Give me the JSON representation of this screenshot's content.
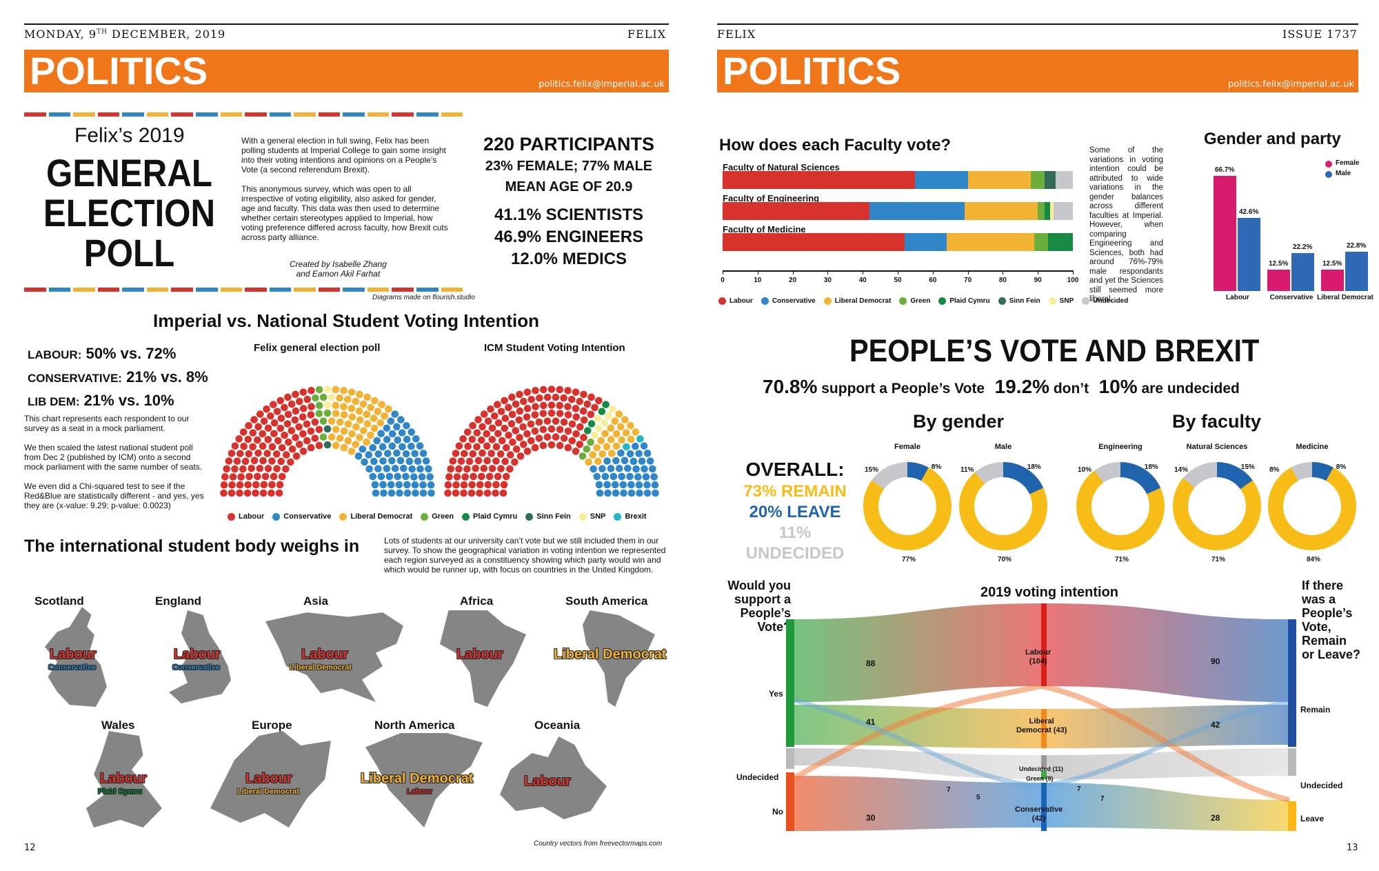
{
  "left_page": {
    "running_head_left": "MONDAY, 9",
    "running_head_sup": "TH",
    "running_head_rest": " DECEMBER, 2019",
    "running_head_right": "FELIX",
    "banner_title": "POLITICS",
    "banner_email": "politics.felix@imperial.ac.uk",
    "kicker": "Felix’s 2019",
    "headline": [
      "GENERAL",
      "ELECTION",
      "POLL"
    ],
    "intro_p1": "With a general election in full swing, Felix has been polling students at Imperial College to gain some insight into their voting intentions and opinions on a People’s Vote (a second referendum Brexit).",
    "intro_p2": "This anonymous survey, which was open to all irrespective of voting eligibility, also asked for gender, age and faculty. This data was then used to determine whether certain stereotypes applied to Imperial, how voting preference differed across faculty, how Brexit cuts across party alliance.",
    "byline_1": "Created by Isabelle Zhang",
    "byline_2": "and Eamon Akil Farhat",
    "stats": [
      "220 PARTICIPANTS",
      "23% FEMALE; 77% MALE",
      "MEAN AGE OF 20.9",
      "41.1% SCIENTISTS",
      "46.9% ENGINEERS",
      "12.0% MEDICS"
    ],
    "flourish_note": "Diagrams made on flourish.studio",
    "section1_title": "Imperial vs. National Student Voting Intention",
    "compare": [
      {
        "party": "LABOUR:",
        "vals": "50% vs. 72%"
      },
      {
        "party": "CONSERVATIVE:",
        "vals": "21% vs. 8%"
      },
      {
        "party": "LIB DEM:",
        "vals": "21% vs. 10%"
      }
    ],
    "expl_p1": "This chart represents each respondent to our survey as a seat in a mock parliament.",
    "expl_p2": "We then scaled the latest national student poll from Dec 2 (published by ICM) onto a second mock parliament with the same number of seats.",
    "expl_p3": "We even did a Chi-squared test to see if the Red&Blue are statistically different - and yes, yes they are (x-value: 9.29; p-value: 0.0023)",
    "parl_left_title": "Felix general election poll",
    "parl_right_title": "ICM Student Voting Intention",
    "parl_legend": [
      {
        "name": "Labour",
        "color": "#d7322c"
      },
      {
        "name": "Conservative",
        "color": "#2f86c8"
      },
      {
        "name": "Liberal Democrat",
        "color": "#f2b233"
      },
      {
        "name": "Green",
        "color": "#6cae3b"
      },
      {
        "name": "Plaid Cymru",
        "color": "#168a45"
      },
      {
        "name": "Sinn Fein",
        "color": "#336b5a"
      },
      {
        "name": "SNP",
        "color": "#f6ee9a"
      },
      {
        "name": "Brexit",
        "color": "#23b4c8"
      }
    ],
    "section2_title": "The international student body weighs in",
    "intl_text": "Lots of students at our university can’t vote but we still included them in our survey.  To show the geographical variation in voting intention we represented each region surveyed as a constituency showing which party would win and which would be runner up, with focus on countries in the United Kingdom.",
    "regions": [
      {
        "name": "Scotland",
        "winner": "Labour",
        "runner": "Conservative"
      },
      {
        "name": "England",
        "winner": "Labour",
        "runner": "Conservative"
      },
      {
        "name": "Asia",
        "winner": "Labour",
        "runner": "Liberal Democrat"
      },
      {
        "name": "Africa",
        "winner": "Labour",
        "runner": ""
      },
      {
        "name": "South America",
        "winner": "Liberal Democrat",
        "runner": ""
      },
      {
        "name": "Wales",
        "winner": "Labour",
        "runner": "Plaid Cymru"
      },
      {
        "name": "Europe",
        "winner": "Labour",
        "runner": "Liberal Democrat"
      },
      {
        "name": "North America",
        "winner": "Liberal Democrat",
        "runner": "Labour"
      },
      {
        "name": "Oceania",
        "winner": "Labour",
        "runner": ""
      }
    ],
    "map_credit": "Country vectors from freevectormaps.com",
    "page_number": "12"
  },
  "right_page": {
    "running_head_left": "FELIX",
    "running_head_right": "ISSUE 1737",
    "banner_title": "POLITICS",
    "banner_email": "politics.felix@imperial.ac.uk",
    "faculty_title": "How does each Faculty vote?",
    "faculty_text": "Some of the variations in voting intention could be attributed to wide variations in the gender balances across different faculties at Imperial. However, when comparing Engineering and Sciences, both had around 76%-79% male respondants and yet the Sciences still seemed more liberal.",
    "faculty_legend": [
      "Labour",
      "Conservative",
      "Liberal Democrat",
      "Green",
      "Plaid Cymru",
      "Sinn Fein",
      "SNP",
      "Undecided"
    ],
    "gender_title": "Gender and party",
    "gender_legend": [
      "Female",
      "Male"
    ],
    "pv_title": "PEOPLE’S VOTE AND BREXIT",
    "pv_sub": [
      {
        "big": "70.8%",
        "small": " support a People’s Vote"
      },
      {
        "big": "19.2%",
        "small": " don’t"
      },
      {
        "big": "10%",
        "small": " are undecided"
      }
    ],
    "by_gender": "By gender",
    "by_faculty": "By faculty",
    "overall_label": "OVERALL:",
    "overall_remain": "73% REMAIN",
    "overall_leave": "20% LEAVE",
    "overall_undecided": "11% UNDECIDED",
    "sankey_left_q": [
      "Would you",
      "support a",
      "People’s",
      "Vote?"
    ],
    "sankey_title": "2019 voting intention",
    "sankey_right_q": [
      "If there",
      "was a",
      "People’s",
      "Vote,",
      "Remain",
      "or Leave?"
    ],
    "sankey_left_nodes": [
      "Yes",
      "Undecided",
      "No"
    ],
    "sankey_right_nodes": [
      "Remain",
      "Undecided",
      "Leave"
    ],
    "sankey_mid_nodes": [
      "Labour",
      "(104)",
      "Liberal",
      "Democrat (43)",
      "Undecided (11)",
      "Green (9)",
      "Conservative",
      "(42)"
    ],
    "sankey_numbers": [
      "88",
      "41",
      "30",
      "7",
      "5",
      "90",
      "42",
      "28",
      "7",
      "7"
    ],
    "page_number": "13"
  },
  "chart_data": [
    {
      "type": "bar",
      "title": "How does each Faculty vote?",
      "orientation": "horizontal-stacked",
      "categories": [
        "Faculty of Natural Sciences",
        "Faculty of Engineering",
        "Faculty of Medicine"
      ],
      "xlim": [
        0,
        100
      ],
      "xticks": [
        "0",
        "10",
        "20",
        "30",
        "40",
        "50",
        "60",
        "70",
        "80",
        "90",
        "100"
      ],
      "series": [
        {
          "name": "Labour",
          "color": "#d7322c",
          "values": [
            55,
            42,
            52
          ]
        },
        {
          "name": "Conservative",
          "color": "#2f86c8",
          "values": [
            15,
            27,
            12
          ]
        },
        {
          "name": "Liberal Democrat",
          "color": "#f2b233",
          "values": [
            18,
            21,
            25
          ]
        },
        {
          "name": "Green",
          "color": "#6cae3b",
          "values": [
            4,
            2,
            4
          ]
        },
        {
          "name": "Plaid Cymru",
          "color": "#168a45",
          "values": [
            0,
            1.5,
            7
          ]
        },
        {
          "name": "Sinn Fein",
          "color": "#336b5a",
          "values": [
            3,
            0,
            0
          ]
        },
        {
          "name": "SNP",
          "color": "#f6ee9a",
          "values": [
            0,
            1,
            0
          ]
        },
        {
          "name": "Undecided",
          "color": "#c6c7cb",
          "values": [
            5,
            5.5,
            0
          ]
        }
      ]
    },
    {
      "type": "bar",
      "title": "Gender and party",
      "categories": [
        "Labour",
        "Conservative",
        "Liberal Democrat"
      ],
      "ylim": [
        0,
        70
      ],
      "series": [
        {
          "name": "Female",
          "color": "#d81b6d",
          "values": [
            66.7,
            12.5,
            12.5
          ],
          "labels": [
            "66.7%",
            "12.5%",
            "12.5%"
          ]
        },
        {
          "name": "Male",
          "color": "#2f69b5",
          "values": [
            42.6,
            22.2,
            22.8
          ],
          "labels": [
            "42.6%",
            "22.2%",
            "22.8%"
          ]
        }
      ]
    },
    {
      "type": "pie",
      "title": "People's Vote by gender and faculty",
      "donuts": [
        {
          "label": "Female",
          "remain": 77,
          "leave": 8,
          "undecided": 15
        },
        {
          "label": "Male",
          "remain": 70,
          "leave": 18,
          "undecided": 11
        },
        {
          "label": "Engineering",
          "remain": 71,
          "leave": 18,
          "undecided": 10
        },
        {
          "label": "Natural Sciences",
          "remain": 71,
          "leave": 15,
          "undecided": 14
        },
        {
          "label": "Medicine",
          "remain": 84,
          "leave": 8,
          "undecided": 8
        }
      ],
      "colors": {
        "remain": "#f7bd16",
        "leave": "#1f64ac",
        "undecided": "#c6c7cb"
      }
    }
  ]
}
